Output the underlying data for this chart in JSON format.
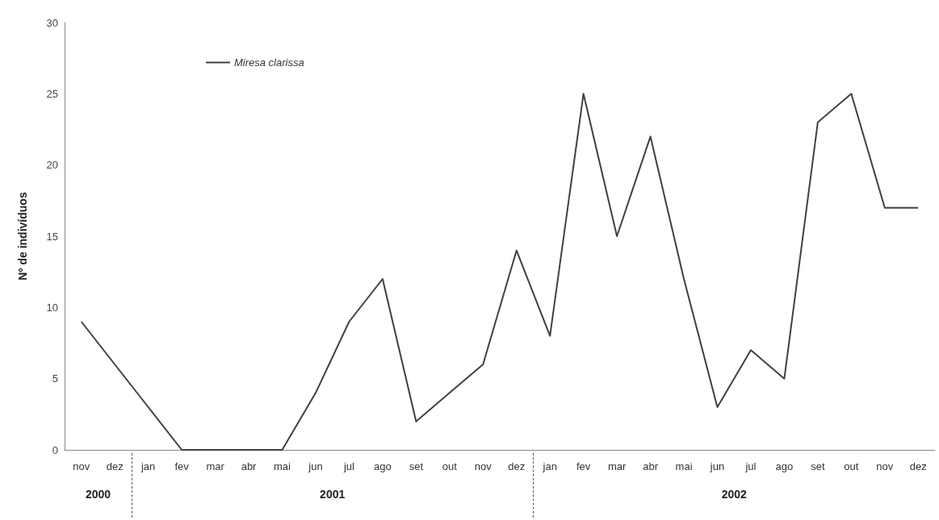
{
  "chart_data": {
    "type": "line",
    "ylabel": "Nº de indivíduos",
    "categories": [
      "nov",
      "dez",
      "jan",
      "fev",
      "mar",
      "abr",
      "mai",
      "jun",
      "jul",
      "ago",
      "set",
      "out",
      "nov",
      "dez",
      "jan",
      "fev",
      "mar",
      "abr",
      "mai",
      "jun",
      "jul",
      "ago",
      "set",
      "out",
      "nov",
      "dez"
    ],
    "series": [
      {
        "name": "Miresa clarissa",
        "color": "#404040",
        "values": [
          9,
          6,
          3,
          0,
          0,
          0,
          0,
          4,
          9,
          12,
          2,
          4,
          6,
          14,
          8,
          25,
          15,
          22,
          12,
          3,
          7,
          5,
          23,
          25,
          17,
          17
        ]
      }
    ],
    "ylim": [
      0,
      30
    ],
    "yticks": [
      0,
      5,
      10,
      15,
      20,
      25,
      30
    ],
    "grid": false,
    "legend": "top left",
    "marker": "none",
    "line_style": "solid",
    "annotations": [
      "2000",
      "2001",
      "2002"
    ]
  }
}
